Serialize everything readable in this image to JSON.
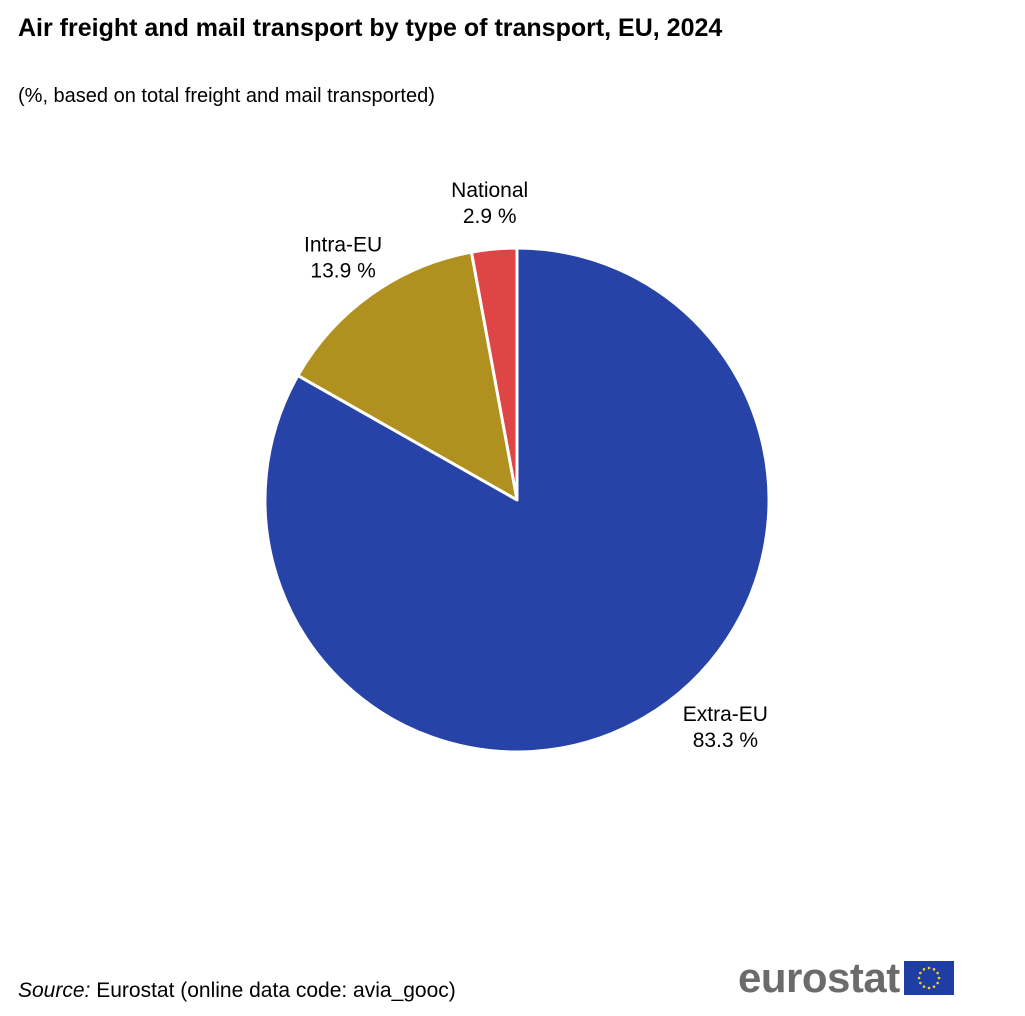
{
  "header": {
    "title": "Air freight and mail transport by type of transport, EU, 2024",
    "subtitle": "(%, based on total freight  and mail transported)"
  },
  "chart_data": {
    "type": "pie",
    "title": "Air freight and mail transport by type of transport, EU, 2024",
    "subtitle": "(%, based on total freight  and mail transported)",
    "unit": "%",
    "start": "top",
    "direction": "counterclockwise",
    "slices": [
      {
        "label": "National",
        "value": 2.9,
        "value_text": "2.9 %",
        "color": "#e04545"
      },
      {
        "label": "Intra-EU",
        "value": 13.9,
        "value_text": "13.9 %",
        "color": "#b0911f"
      },
      {
        "label": "Extra-EU",
        "value": 83.3,
        "value_text": "83.3 %",
        "color": "#2843a8"
      }
    ]
  },
  "footer": {
    "source_label": "Source:",
    "source_text": " Eurostat (online data code: avia_gooc)"
  },
  "logo": {
    "text": "eurostat",
    "flag_color": "#1f3ea3",
    "star_color": "#f2d21b"
  }
}
